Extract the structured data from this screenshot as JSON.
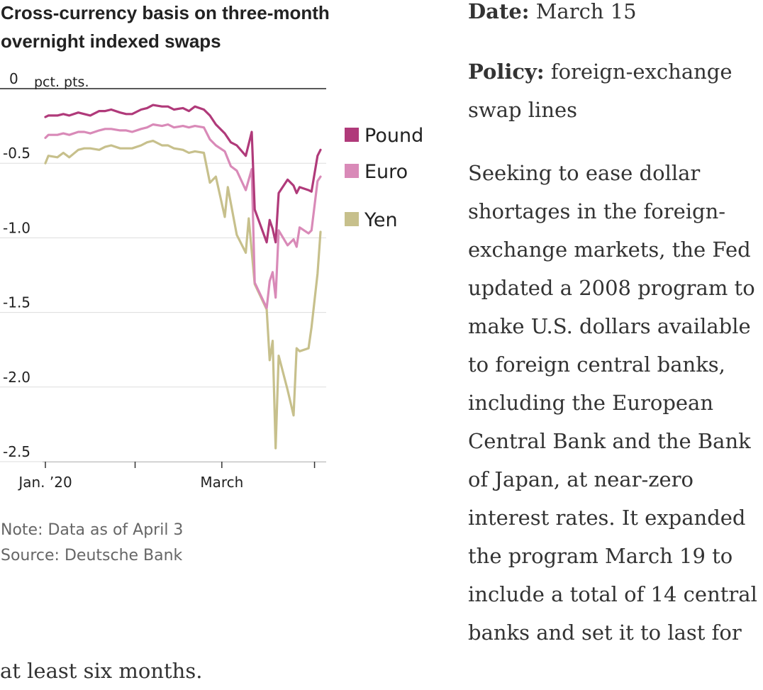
{
  "chart_data": {
    "type": "line",
    "title": "Cross-currency basis on three-month overnight indexed swaps",
    "title_lines": [
      "Cross-currency basis on three-month",
      "overnight indexed swaps"
    ],
    "ylabel": "pct. pts.",
    "ylim": [
      -2.5,
      0
    ],
    "yticks": [
      {
        "value": 0,
        "label": "0"
      },
      {
        "value": -0.5,
        "label": "-0.5"
      },
      {
        "value": -1.0,
        "label": "-1.0"
      },
      {
        "value": -1.5,
        "label": "-1.5"
      },
      {
        "value": -2.0,
        "label": "-2.0"
      },
      {
        "value": -2.5,
        "label": "-2.5"
      }
    ],
    "xlim": [
      "2020-01-02",
      "2020-04-03"
    ],
    "xticks": [
      {
        "date": "2020-01-02",
        "label": "Jan. ’20"
      },
      {
        "date": "2020-02-01",
        "label": ""
      },
      {
        "date": "2020-03-01",
        "label": "March"
      },
      {
        "date": "2020-04-01",
        "label": ""
      }
    ],
    "grid": true,
    "legend_position": "right",
    "series": [
      {
        "name": "Pound",
        "color": "#b03a7a",
        "points": [
          [
            "2020-01-02",
            -0.19
          ],
          [
            "2020-01-03",
            -0.18
          ],
          [
            "2020-01-06",
            -0.18
          ],
          [
            "2020-01-08",
            -0.17
          ],
          [
            "2020-01-10",
            -0.18
          ],
          [
            "2020-01-13",
            -0.16
          ],
          [
            "2020-01-15",
            -0.17
          ],
          [
            "2020-01-17",
            -0.18
          ],
          [
            "2020-01-20",
            -0.15
          ],
          [
            "2020-01-22",
            -0.15
          ],
          [
            "2020-01-24",
            -0.14
          ],
          [
            "2020-01-27",
            -0.16
          ],
          [
            "2020-01-29",
            -0.17
          ],
          [
            "2020-01-31",
            -0.17
          ],
          [
            "2020-02-03",
            -0.14
          ],
          [
            "2020-02-05",
            -0.13
          ],
          [
            "2020-02-07",
            -0.11
          ],
          [
            "2020-02-10",
            -0.12
          ],
          [
            "2020-02-12",
            -0.12
          ],
          [
            "2020-02-14",
            -0.14
          ],
          [
            "2020-02-17",
            -0.13
          ],
          [
            "2020-02-19",
            -0.15
          ],
          [
            "2020-02-21",
            -0.12
          ],
          [
            "2020-02-24",
            -0.14
          ],
          [
            "2020-02-26",
            -0.18
          ],
          [
            "2020-02-28",
            -0.24
          ],
          [
            "2020-03-02",
            -0.3
          ],
          [
            "2020-03-04",
            -0.36
          ],
          [
            "2020-03-06",
            -0.38
          ],
          [
            "2020-03-09",
            -0.45
          ],
          [
            "2020-03-11",
            -0.29
          ],
          [
            "2020-03-12",
            -0.81
          ],
          [
            "2020-03-16",
            -1.03
          ],
          [
            "2020-03-17",
            -0.88
          ],
          [
            "2020-03-18",
            -0.94
          ],
          [
            "2020-03-19",
            -1.03
          ],
          [
            "2020-03-20",
            -0.7
          ],
          [
            "2020-03-23",
            -0.61
          ],
          [
            "2020-03-25",
            -0.65
          ],
          [
            "2020-03-26",
            -0.7
          ],
          [
            "2020-03-27",
            -0.66
          ],
          [
            "2020-03-30",
            -0.68
          ],
          [
            "2020-03-31",
            -0.69
          ],
          [
            "2020-04-02",
            -0.45
          ],
          [
            "2020-04-03",
            -0.41
          ]
        ]
      },
      {
        "name": "Euro",
        "color": "#d98ab8",
        "points": [
          [
            "2020-01-02",
            -0.33
          ],
          [
            "2020-01-03",
            -0.31
          ],
          [
            "2020-01-06",
            -0.31
          ],
          [
            "2020-01-08",
            -0.3
          ],
          [
            "2020-01-10",
            -0.31
          ],
          [
            "2020-01-13",
            -0.29
          ],
          [
            "2020-01-15",
            -0.29
          ],
          [
            "2020-01-17",
            -0.3
          ],
          [
            "2020-01-20",
            -0.28
          ],
          [
            "2020-01-22",
            -0.27
          ],
          [
            "2020-01-24",
            -0.27
          ],
          [
            "2020-01-27",
            -0.28
          ],
          [
            "2020-01-29",
            -0.28
          ],
          [
            "2020-01-31",
            -0.29
          ],
          [
            "2020-02-03",
            -0.27
          ],
          [
            "2020-02-05",
            -0.26
          ],
          [
            "2020-02-07",
            -0.24
          ],
          [
            "2020-02-10",
            -0.25
          ],
          [
            "2020-02-12",
            -0.24
          ],
          [
            "2020-02-14",
            -0.26
          ],
          [
            "2020-02-17",
            -0.25
          ],
          [
            "2020-02-19",
            -0.26
          ],
          [
            "2020-02-21",
            -0.25
          ],
          [
            "2020-02-24",
            -0.26
          ],
          [
            "2020-02-26",
            -0.34
          ],
          [
            "2020-02-28",
            -0.38
          ],
          [
            "2020-03-02",
            -0.42
          ],
          [
            "2020-03-04",
            -0.52
          ],
          [
            "2020-03-06",
            -0.55
          ],
          [
            "2020-03-09",
            -0.68
          ],
          [
            "2020-03-11",
            -0.54
          ],
          [
            "2020-03-12",
            -1.3
          ],
          [
            "2020-03-16",
            -1.47
          ],
          [
            "2020-03-17",
            -1.29
          ],
          [
            "2020-03-18",
            -1.23
          ],
          [
            "2020-03-19",
            -1.4
          ],
          [
            "2020-03-20",
            -0.95
          ],
          [
            "2020-03-23",
            -1.05
          ],
          [
            "2020-03-25",
            -1.01
          ],
          [
            "2020-03-26",
            -1.06
          ],
          [
            "2020-03-27",
            -0.93
          ],
          [
            "2020-03-30",
            -0.97
          ],
          [
            "2020-03-31",
            -0.95
          ],
          [
            "2020-04-02",
            -0.62
          ],
          [
            "2020-04-03",
            -0.59
          ]
        ]
      },
      {
        "name": "Yen",
        "color": "#c7c08c",
        "points": [
          [
            "2020-01-02",
            -0.5
          ],
          [
            "2020-01-03",
            -0.45
          ],
          [
            "2020-01-06",
            -0.46
          ],
          [
            "2020-01-08",
            -0.43
          ],
          [
            "2020-01-10",
            -0.46
          ],
          [
            "2020-01-13",
            -0.41
          ],
          [
            "2020-01-15",
            -0.4
          ],
          [
            "2020-01-17",
            -0.4
          ],
          [
            "2020-01-20",
            -0.41
          ],
          [
            "2020-01-22",
            -0.39
          ],
          [
            "2020-01-24",
            -0.38
          ],
          [
            "2020-01-27",
            -0.4
          ],
          [
            "2020-01-29",
            -0.4
          ],
          [
            "2020-01-31",
            -0.4
          ],
          [
            "2020-02-03",
            -0.38
          ],
          [
            "2020-02-05",
            -0.36
          ],
          [
            "2020-02-07",
            -0.35
          ],
          [
            "2020-02-10",
            -0.38
          ],
          [
            "2020-02-12",
            -0.38
          ],
          [
            "2020-02-14",
            -0.4
          ],
          [
            "2020-02-17",
            -0.41
          ],
          [
            "2020-02-19",
            -0.43
          ],
          [
            "2020-02-21",
            -0.42
          ],
          [
            "2020-02-24",
            -0.43
          ],
          [
            "2020-02-26",
            -0.63
          ],
          [
            "2020-02-28",
            -0.59
          ],
          [
            "2020-03-02",
            -0.86
          ],
          [
            "2020-03-03",
            -0.66
          ],
          [
            "2020-03-06",
            -0.98
          ],
          [
            "2020-03-09",
            -1.1
          ],
          [
            "2020-03-10",
            -0.87
          ],
          [
            "2020-03-12",
            -1.31
          ],
          [
            "2020-03-16",
            -1.48
          ],
          [
            "2020-03-17",
            -1.82
          ],
          [
            "2020-03-18",
            -1.69
          ],
          [
            "2020-03-19",
            -2.41
          ],
          [
            "2020-03-20",
            -1.79
          ],
          [
            "2020-03-23",
            -2.02
          ],
          [
            "2020-03-25",
            -2.19
          ],
          [
            "2020-03-26",
            -1.74
          ],
          [
            "2020-03-27",
            -1.76
          ],
          [
            "2020-03-30",
            -1.74
          ],
          [
            "2020-03-31",
            -1.6
          ],
          [
            "2020-04-02",
            -1.24
          ],
          [
            "2020-04-03",
            -0.96
          ]
        ]
      }
    ],
    "note": "Note: Data as of April 3",
    "source": "Source: Deutsche Bank"
  },
  "article": {
    "date_label": "Date:",
    "date_value": "March 15",
    "policy_label": "Policy:",
    "policy_value": "foreign-exchange swap lines",
    "body": "Seeking to ease dollar shortages in the foreign-exchange markets, the Fed updated a 2008 program to make U.S. dollars available to foreign central banks, including the European Central Bank and the Bank of Japan, at near-zero interest rates. It expanded the program March 19 to include a total of 14 central banks and set it to last for at least six months."
  }
}
